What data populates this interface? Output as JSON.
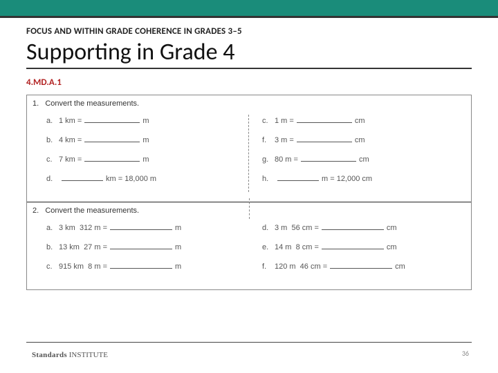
{
  "colors": {
    "topbar": "#1a8c7a",
    "standard": "#b22222",
    "rule": "#333333"
  },
  "header": {
    "eyebrow": "FOCUS AND WITHIN GRADE COHERENCE IN GRADES 3–5",
    "title": "Supporting in Grade 4",
    "standard": "4.MD.A.1"
  },
  "worksheet": {
    "sections": [
      {
        "num": "1.",
        "prompt": "Convert the measurements.",
        "left": [
          {
            "letter": "a.",
            "pre": "1 km =",
            "post": "m"
          },
          {
            "letter": "b.",
            "pre": "4 km =",
            "post": "m"
          },
          {
            "letter": "c.",
            "pre": "7 km =",
            "post": "m"
          },
          {
            "letter": "d.",
            "pre_blank": true,
            "mid": "km = 18,000 m"
          }
        ],
        "right": [
          {
            "letter": "c.",
            "pre": "1 m =",
            "post": "cm"
          },
          {
            "letter": "f.",
            "pre": "3 m =",
            "post": "cm"
          },
          {
            "letter": "g.",
            "pre": "80 m =",
            "post": "cm"
          },
          {
            "letter": "h.",
            "pre_blank": true,
            "mid": "m = 12,000 cm"
          }
        ]
      },
      {
        "num": "2.",
        "prompt": "Convert the measurements.",
        "left": [
          {
            "letter": "a.",
            "pre": "3 km  312 m =",
            "post": "m"
          },
          {
            "letter": "b.",
            "pre": "13 km  27 m =",
            "post": "m"
          },
          {
            "letter": "c.",
            "pre": "915 km  8 m =",
            "post": "m"
          }
        ],
        "right": [
          {
            "letter": "d.",
            "pre": "3 m  56 cm =",
            "post": "cm"
          },
          {
            "letter": "e.",
            "pre": "14 m  8 cm =",
            "post": "cm"
          },
          {
            "letter": "f.",
            "pre": "120 m  46 cm =",
            "post": "cm"
          }
        ]
      }
    ]
  },
  "footer": {
    "logo_bold": "Standards",
    "logo_rest": " INSTITUTE",
    "page": "36"
  }
}
